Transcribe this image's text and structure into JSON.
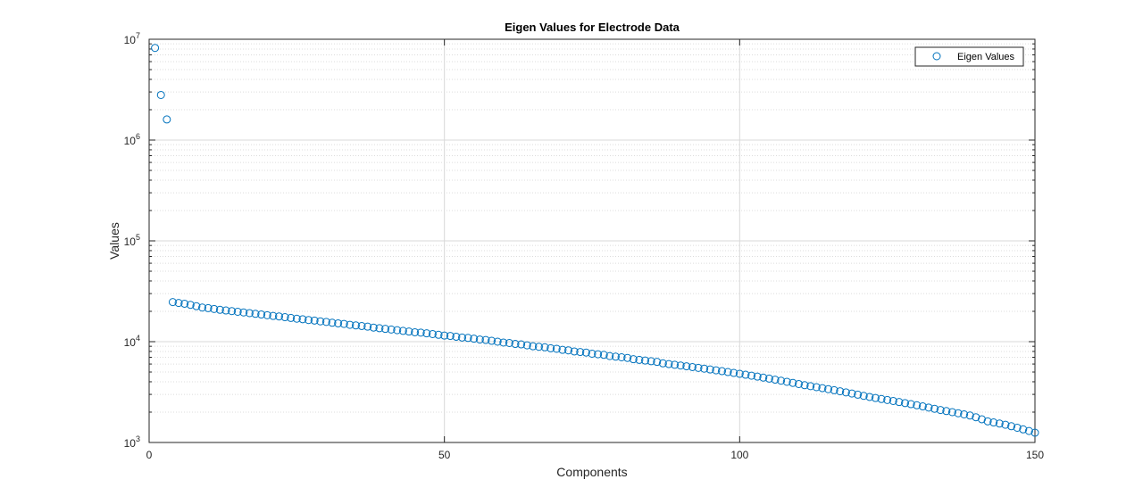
{
  "chart_data": {
    "type": "scatter",
    "title": "Eigen Values for Electrode Data",
    "xlabel": "Components",
    "ylabel": "Values",
    "xlim": [
      0,
      150
    ],
    "ylim": [
      1000,
      10000000
    ],
    "yscale": "log",
    "grid": true,
    "minor_grid": true,
    "legend_position": "top-right",
    "marker": "open-circle",
    "x_ticks": [
      "0",
      "50",
      "100",
      "150"
    ],
    "y_ticks": [
      {
        "base": "10",
        "exp": "3",
        "value": 1000
      },
      {
        "base": "10",
        "exp": "4",
        "value": 10000
      },
      {
        "base": "10",
        "exp": "5",
        "value": 100000
      },
      {
        "base": "10",
        "exp": "6",
        "value": 1000000
      },
      {
        "base": "10",
        "exp": "7",
        "value": 10000000
      }
    ],
    "series": [
      {
        "name": "Eigen Values",
        "color": "#0072BD",
        "x": [
          1,
          2,
          3,
          4,
          5,
          6,
          7,
          8,
          9,
          10,
          11,
          12,
          13,
          14,
          15,
          16,
          17,
          18,
          19,
          20,
          21,
          22,
          23,
          24,
          25,
          26,
          27,
          28,
          29,
          30,
          31,
          32,
          33,
          34,
          35,
          36,
          37,
          38,
          39,
          40,
          41,
          42,
          43,
          44,
          45,
          46,
          47,
          48,
          49,
          50,
          51,
          52,
          53,
          54,
          55,
          56,
          57,
          58,
          59,
          60,
          61,
          62,
          63,
          64,
          65,
          66,
          67,
          68,
          69,
          70,
          71,
          72,
          73,
          74,
          75,
          76,
          77,
          78,
          79,
          80,
          81,
          82,
          83,
          84,
          85,
          86,
          87,
          88,
          89,
          90,
          91,
          92,
          93,
          94,
          95,
          96,
          97,
          98,
          99,
          100,
          101,
          102,
          103,
          104,
          105,
          106,
          107,
          108,
          109,
          110,
          111,
          112,
          113,
          114,
          115,
          116,
          117,
          118,
          119,
          120,
          121,
          122,
          123,
          124,
          125,
          126,
          127,
          128,
          129,
          130,
          131,
          132,
          133,
          134,
          135,
          136,
          137,
          138,
          139,
          140,
          141,
          142,
          143,
          144,
          145,
          146,
          147,
          148,
          149,
          150
        ],
        "y": [
          8200000,
          2800000,
          1600000,
          24700,
          24200,
          23800,
          23200,
          22500,
          21800,
          21500,
          21100,
          20700,
          20400,
          20100,
          19800,
          19500,
          19200,
          18900,
          18600,
          18300,
          18000,
          17800,
          17500,
          17200,
          16900,
          16700,
          16400,
          16200,
          15900,
          15700,
          15400,
          15200,
          15000,
          14700,
          14500,
          14300,
          14100,
          13800,
          13600,
          13400,
          13200,
          13000,
          12800,
          12600,
          12400,
          12300,
          12100,
          11900,
          11700,
          11500,
          11400,
          11200,
          11000,
          10900,
          10700,
          10500,
          10400,
          10200,
          10000,
          9800,
          9700,
          9500,
          9400,
          9200,
          9000,
          8900,
          8800,
          8600,
          8500,
          8300,
          8200,
          8000,
          7900,
          7800,
          7600,
          7500,
          7400,
          7200,
          7100,
          7000,
          6900,
          6700,
          6600,
          6500,
          6400,
          6300,
          6100,
          6000,
          5900,
          5800,
          5700,
          5600,
          5500,
          5400,
          5300,
          5200,
          5100,
          5000,
          4900,
          4800,
          4700,
          4600,
          4500,
          4400,
          4300,
          4200,
          4100,
          4000,
          3900,
          3800,
          3700,
          3620,
          3540,
          3460,
          3380,
          3300,
          3220,
          3140,
          3060,
          2980,
          2900,
          2830,
          2760,
          2700,
          2640,
          2580,
          2520,
          2460,
          2400,
          2340,
          2280,
          2220,
          2160,
          2100,
          2050,
          2000,
          1950,
          1900,
          1850,
          1780,
          1700,
          1620,
          1580,
          1540,
          1500,
          1450,
          1400,
          1350,
          1300,
          1250
        ]
      }
    ]
  }
}
